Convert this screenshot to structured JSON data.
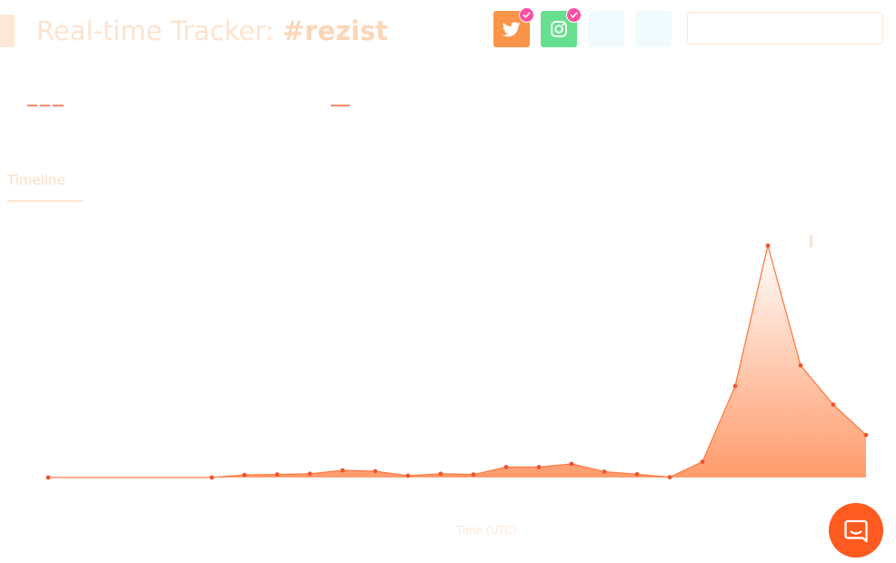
{
  "header": {
    "title_prefix": "Real-time Tracker:",
    "title_hashtag": "#rezist",
    "social_buttons": [
      {
        "name": "twitter",
        "icon": "twitter-bird-icon",
        "selected": true,
        "color": "#fa9448"
      },
      {
        "name": "instagram",
        "icon": "instagram-icon",
        "selected": true,
        "color": "#66e08e"
      },
      {
        "name": "extra-1",
        "selected": false,
        "color": "#f1fbfe"
      },
      {
        "name": "extra-2",
        "selected": false,
        "color": "#f1fbfe"
      }
    ],
    "search": {
      "value": "",
      "placeholder": ""
    }
  },
  "tabs": [
    {
      "label": "Timeline",
      "active": true
    }
  ],
  "chart_data": {
    "type": "area",
    "xlabel": "Time (UTC)",
    "ylabel": "",
    "title": "",
    "color": "#ff7a45",
    "x": [
      0,
      5,
      6,
      7,
      8,
      9,
      10,
      11,
      12,
      13,
      14,
      15,
      16,
      17,
      18,
      19,
      20,
      21,
      22,
      23,
      24,
      25
    ],
    "values": [
      0,
      0,
      1.1,
      1.3,
      1.6,
      3.1,
      2.7,
      0.8,
      1.6,
      1.3,
      4.5,
      4.5,
      5.9,
      2.5,
      1.4,
      0.1,
      6.8,
      39.4,
      100,
      48.3,
      31.4,
      18.3
    ],
    "ylim": [
      0,
      100
    ],
    "grid": false,
    "legend": "none"
  },
  "chat": {
    "icon": "chat-bubble-icon",
    "color": "#ff5a1f"
  }
}
